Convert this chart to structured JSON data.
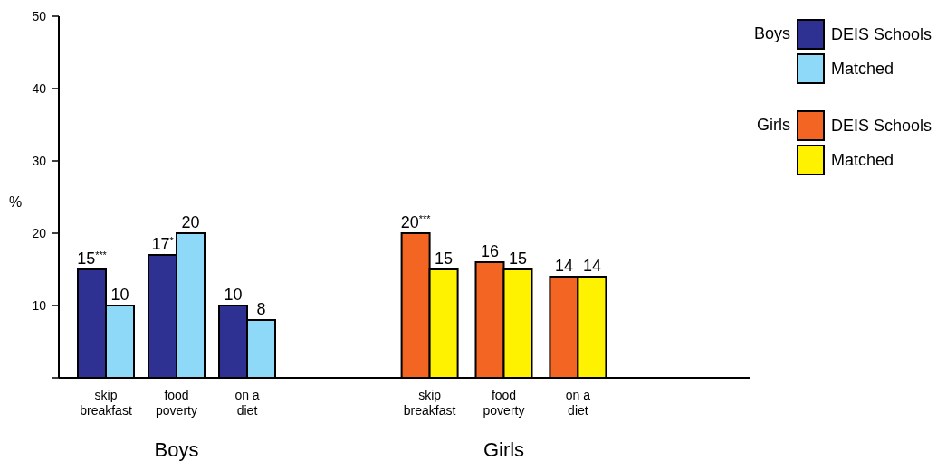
{
  "chart_data": {
    "type": "bar",
    "ylabel": "%",
    "categories": [
      "skip breakfast",
      "food poverty",
      "on a diet",
      null,
      "skip breakfast",
      "food poverty",
      "on a diet"
    ],
    "series": [
      {
        "name": "DEIS Schools",
        "color": "#2e3192",
        "values": [
          15,
          17,
          10,
          null,
          null,
          null,
          null
        ],
        "value_labels": [
          "15$^{***}$",
          "17$^{*}$",
          "10",
          null,
          null,
          null,
          null
        ]
      },
      {
        "name": "Matched",
        "color": "#8ed8f8",
        "values": [
          10,
          20,
          8,
          null,
          null,
          null,
          null
        ],
        "value_labels": [
          "10",
          "20",
          "8",
          null,
          null,
          null,
          null
        ]
      },
      {
        "name": "DEIS Schools",
        "color": "#f26522",
        "values": [
          null,
          null,
          null,
          null,
          20,
          16,
          14
        ],
        "value_labels": [
          null,
          null,
          null,
          null,
          "20$^{***}$",
          "16",
          "14"
        ]
      },
      {
        "name": "Matched",
        "color": "#fff200",
        "values": [
          null,
          null,
          null,
          null,
          15,
          15,
          14
        ],
        "value_labels": [
          null,
          null,
          null,
          null,
          "15",
          "15",
          "14"
        ]
      }
    ],
    "annotations": [
      "Boys",
      "Girls"
    ],
    "ylim": [
      0,
      50
    ],
    "yticks": [
      {
        "value": 0,
        "label": null
      },
      10,
      20,
      30,
      40,
      50
    ],
    "legend": "top right",
    "grid": false
  }
}
